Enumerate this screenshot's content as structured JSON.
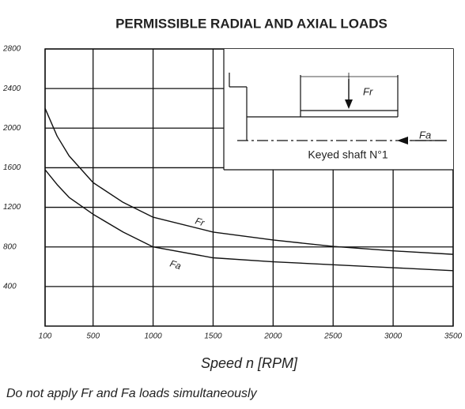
{
  "chart_data": {
    "type": "line",
    "title": "PERMISSIBLE RADIAL AND AXIAL LOADS",
    "x_label": "Speed n [RPM]",
    "note": "Do not apply Fr and Fa loads simultaneously",
    "x": [
      100,
      200,
      300,
      500,
      750,
      1000,
      1500,
      2000,
      2500,
      3000,
      3500
    ],
    "series": [
      {
        "name": "Fr",
        "color": "#111111",
        "values": [
          2200,
          1920,
          1720,
          1450,
          1250,
          1100,
          950,
          870,
          805,
          760,
          725
        ]
      },
      {
        "name": "Fa",
        "color": "#111111",
        "values": [
          1580,
          1430,
          1300,
          1130,
          950,
          800,
          690,
          650,
          620,
          590,
          560
        ]
      }
    ],
    "xlim": [
      100,
      3500
    ],
    "xticks": [
      100,
      500,
      1000,
      1500,
      2000,
      2500,
      3000,
      3500
    ],
    "ylim": [
      0,
      2800
    ],
    "yticks": [
      400,
      800,
      1200,
      1600,
      2000,
      2400,
      2800
    ],
    "grid": true,
    "inset": {
      "radial": "Fr",
      "axial": "Fa",
      "caption": "Keyed shaft N°1"
    }
  }
}
